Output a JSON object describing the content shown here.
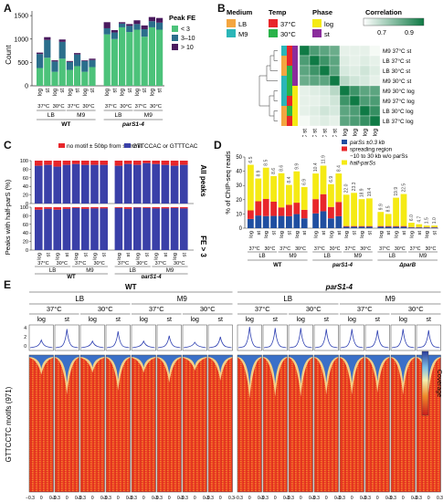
{
  "panels": {
    "A": {
      "letter": "A",
      "ylabel": "Count",
      "legend_title": "Peak FE",
      "legend": [
        {
          "label": "< 3",
          "color": "#4cc27a"
        },
        {
          "label": "3–10",
          "color": "#2b6e8c"
        },
        {
          "label": "> 10",
          "color": "#4a1a5e"
        }
      ],
      "ticks": [
        "0",
        "500",
        "1000",
        "1500"
      ],
      "bar_labels": [
        "log",
        "st",
        "log",
        "st",
        "log",
        "st",
        "log",
        "st"
      ],
      "temp_labels": [
        "37°C",
        "30°C",
        "37°C",
        "30°C"
      ],
      "medium_labels": [
        "LB",
        "M9"
      ],
      "strain_labels": [
        "WT",
        "parS1-4"
      ]
    },
    "B": {
      "letter": "B",
      "medium_title": "Medium",
      "temp_title": "Temp",
      "phase_title": "Phase",
      "corr_title": "Correlation",
      "medium_items": [
        {
          "label": "LB",
          "color": "#f4a640"
        },
        {
          "label": "M9",
          "color": "#2bb6b8"
        }
      ],
      "temp_items": [
        {
          "label": "37°C",
          "color": "#e8262a"
        },
        {
          "label": "30°C",
          "color": "#2ab34a"
        }
      ],
      "phase_items": [
        {
          "label": "log",
          "color": "#f5ea14"
        },
        {
          "label": "st",
          "color": "#8b2c9c"
        }
      ],
      "corr_ticks": [
        "0.7",
        "0.9"
      ],
      "row_labels": [
        "M9 37°C st",
        "LB 37°C st",
        "LB 30°C st",
        "M9 30°C st",
        "M9 30°C log",
        "M9 37°C log",
        "LB 30°C log",
        "LB 37°C log"
      ],
      "col_labels": [
        "M9 37°C st",
        "LB 37°C st",
        "LB 30°C st",
        "M9 30°C st",
        "M9 30°C log",
        "M9 37°C log",
        "LB 30°C log",
        "LB 37°C log"
      ]
    },
    "C": {
      "letter": "C",
      "ylabel": "Peaks with half-parS (%)",
      "legend": [
        {
          "label": "no motif ± 50bp from summit",
          "color": "#e8262a"
        },
        {
          "label": "GTTCCAC or GTTTCAC",
          "color": "#3a40a8"
        }
      ],
      "ticks": [
        "0",
        "20",
        "40",
        "60",
        "80",
        "100"
      ],
      "side_labels": [
        "All peaks",
        "FE > 3"
      ],
      "bar_labels": [
        "log",
        "st",
        "log",
        "st",
        "log",
        "st",
        "log",
        "st"
      ],
      "temp_labels": [
        "37°C",
        "30°C",
        "37°C",
        "30°C"
      ],
      "medium_labels": [
        "LB",
        "M9"
      ],
      "strain_labels": [
        "WT",
        "parS1-4"
      ]
    },
    "D": {
      "letter": "D",
      "ylabel": "% of ChIP-seq reads",
      "legend": [
        {
          "label": "parSs ±0.3 kb",
          "color": "#1f4ea0"
        },
        {
          "label": "spreading region",
          "color": "#e8262a"
        },
        {
          "label": "−10 to 30 kb w/o parSs",
          "color": "#e8262a"
        },
        {
          "label": "half-parSs",
          "color": "#f5ea14"
        }
      ],
      "ticks": [
        "0",
        "10",
        "20",
        "30",
        "40",
        "50"
      ],
      "bar_labels": [
        "log",
        "st",
        "log",
        "st",
        "log",
        "st",
        "log",
        "st",
        "log",
        "st",
        "log",
        "st",
        "log",
        "st",
        "log",
        "st",
        "log",
        "st",
        "log",
        "st",
        "log",
        "st",
        "log",
        "st"
      ],
      "temp_labels": [
        "37°C",
        "30°C",
        "37°C",
        "30°C",
        "37°C",
        "30°C",
        "37°C",
        "30°C",
        "37°C",
        "30°C",
        "37°C",
        "30°C"
      ],
      "medium_labels": [
        "LB",
        "M9",
        "LB",
        "M9",
        "LB",
        "M9"
      ],
      "strain_labels": [
        "WT",
        "parS1-4",
        "ΔparB"
      ]
    },
    "E": {
      "letter": "E",
      "strain_labels": [
        "WT",
        "parS1-4"
      ],
      "medium_labels": [
        "LB",
        "M9",
        "LB",
        "M9"
      ],
      "temp_labels": [
        "37°C",
        "30°C",
        "37°C",
        "30°C",
        "37°C",
        "30°C",
        "37°C",
        "30°C"
      ],
      "phase_labels": [
        "log",
        "st"
      ],
      "profile_ticks": [
        "4",
        "2",
        "0"
      ],
      "ylabel": "GTTCCTC motifs (971)",
      "xtick_left": "−0.3",
      "xtick_mid": "0",
      "xtick_right": "0.3",
      "colorbar_label": "Coverage"
    }
  },
  "chart_data": [
    {
      "type": "bar",
      "panel": "A",
      "categories": [
        "WT LB 37°C log",
        "WT LB 37°C st",
        "WT LB 30°C log",
        "WT LB 30°C st",
        "WT M9 37°C log",
        "WT M9 37°C st",
        "WT M9 30°C log",
        "WT M9 30°C st",
        "parS1-4 LB 37°C log",
        "parS1-4 LB 37°C st",
        "parS1-4 LB 30°C log",
        "parS1-4 LB 30°C st",
        "parS1-4 M9 37°C log",
        "parS1-4 M9 37°C st",
        "parS1-4 M9 30°C log",
        "parS1-4 M9 30°C st"
      ],
      "stacked": true,
      "series": [
        {
          "name": "< 3",
          "values": [
            380,
            600,
            300,
            580,
            340,
            420,
            300,
            400,
            1100,
            1000,
            1250,
            1150,
            1200,
            1050,
            1250,
            1200
          ]
        },
        {
          "name": "3–10",
          "values": [
            300,
            380,
            220,
            360,
            170,
            250,
            230,
            150,
            130,
            140,
            80,
            130,
            120,
            160,
            130,
            150
          ]
        },
        {
          "name": "> 10",
          "values": [
            30,
            60,
            25,
            50,
            20,
            30,
            15,
            30,
            130,
            50,
            30,
            40,
            80,
            80,
            90,
            100
          ]
        }
      ],
      "ylim": [
        0,
        1600
      ]
    },
    {
      "type": "heatmap",
      "panel": "B",
      "rows": [
        "M9 37°C st",
        "LB 37°C st",
        "LB 30°C st",
        "M9 30°C st",
        "M9 30°C log",
        "M9 37°C log",
        "LB 30°C log",
        "LB 37°C log"
      ],
      "values": [
        [
          1.0,
          0.92,
          0.9,
          0.88,
          0.72,
          0.72,
          0.72,
          0.7
        ],
        [
          0.92,
          1.0,
          0.94,
          0.9,
          0.73,
          0.72,
          0.73,
          0.72
        ],
        [
          0.9,
          0.94,
          1.0,
          0.9,
          0.74,
          0.73,
          0.75,
          0.73
        ],
        [
          0.88,
          0.9,
          0.9,
          1.0,
          0.78,
          0.75,
          0.74,
          0.72
        ],
        [
          0.72,
          0.73,
          0.74,
          0.78,
          1.0,
          0.94,
          0.9,
          0.9
        ],
        [
          0.72,
          0.72,
          0.73,
          0.75,
          0.94,
          1.0,
          0.92,
          0.92
        ],
        [
          0.72,
          0.73,
          0.75,
          0.74,
          0.9,
          0.92,
          1.0,
          0.95
        ],
        [
          0.7,
          0.72,
          0.73,
          0.72,
          0.9,
          0.92,
          0.95,
          1.0
        ]
      ],
      "range": [
        0.7,
        1.0
      ]
    },
    {
      "type": "bar",
      "panel": "C",
      "subpanels": [
        {
          "name": "All peaks",
          "no_motif": [
            12,
            10,
            14,
            10,
            8,
            10,
            10,
            10,
            12,
            8,
            10,
            6,
            8,
            10,
            12,
            10
          ]
        },
        {
          "name": "FE > 3",
          "no_motif": [
            6,
            4,
            6,
            4,
            2,
            4,
            3,
            3,
            2,
            4,
            1,
            2,
            3,
            3,
            2,
            3
          ]
        }
      ],
      "ylim": [
        0,
        100
      ]
    },
    {
      "type": "bar",
      "panel": "D",
      "stacked": true,
      "data_labels": [
        "6.5",
        "8.9",
        "8.5",
        "8.6",
        "8.6",
        "8.4",
        "9.9",
        "6.9",
        "10.4",
        "11.9",
        "6.9",
        "8.4",
        "22.0",
        "23.3",
        "18.9",
        "19.4",
        "9.9",
        "8.5",
        "19.9",
        "22.5",
        "6.0",
        "4.7",
        "1.5",
        "1.0"
      ],
      "series": [
        {
          "name": "parSs ±0.3 kb",
          "values": [
            6.5,
            8.9,
            8.5,
            8.6,
            8.6,
            8.4,
            9.9,
            6.9,
            10.4,
            11.9,
            6.9,
            8.4,
            1,
            1,
            1,
            1,
            1,
            1,
            1,
            1,
            0.5,
            0.5,
            0.5,
            0.5
          ]
        },
        {
          "name": "spreading region −10 to 30 kb w/o parSs",
          "values": [
            6,
            10,
            12,
            10,
            6,
            8,
            8,
            6,
            10,
            12,
            8,
            10,
            0.5,
            0.5,
            0.5,
            0.5,
            0.5,
            0.5,
            0.5,
            0.5,
            0.3,
            0.3,
            0.3,
            0.3
          ]
        },
        {
          "name": "half-parSs",
          "values": [
            32,
            16,
            22,
            18,
            24,
            14,
            22,
            16,
            18,
            20,
            16,
            20,
            22,
            23.3,
            18.9,
            19.4,
            9.9,
            8.5,
            19.9,
            22.5,
            3,
            2,
            1,
            1
          ]
        }
      ],
      "ylim": [
        0,
        50
      ]
    }
  ]
}
